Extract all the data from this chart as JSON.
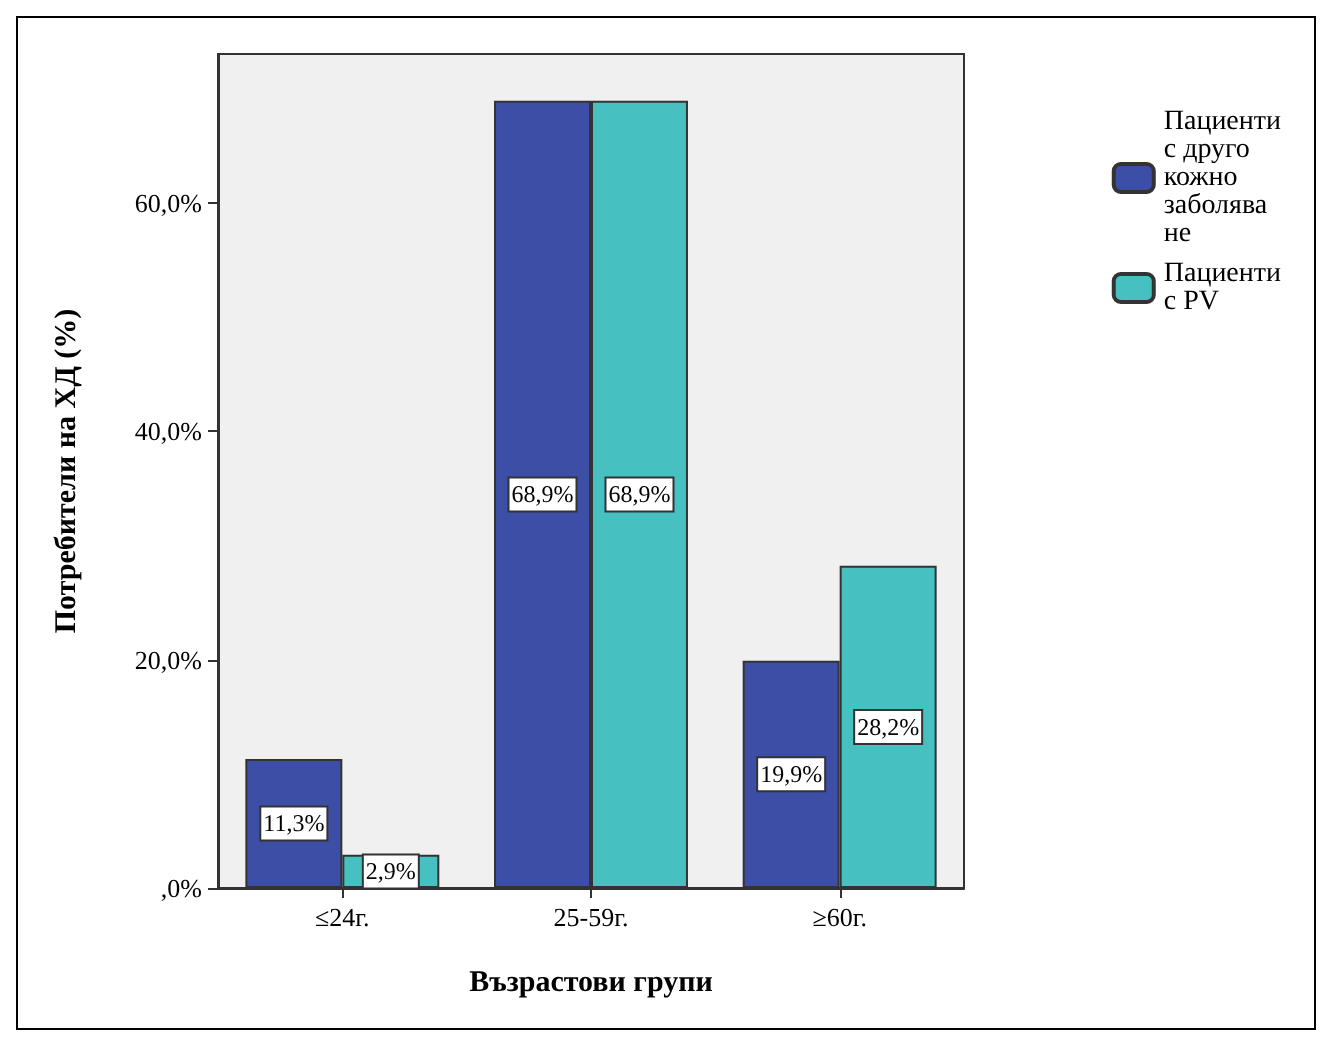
{
  "chart_data": {
    "type": "bar",
    "xlabel": "Възрастови групи",
    "ylabel": "Потребители на ХД (%)",
    "categories": [
      "≤24г.",
      "25-59г.",
      "≥60г."
    ],
    "series": [
      {
        "name": "Пациенти с друго кожно заболяване",
        "color": "#3c4ea6",
        "values": [
          11.3,
          68.9,
          19.9
        ],
        "value_labels": [
          "11,3%",
          "68,9%",
          "19,9%"
        ]
      },
      {
        "name": "Пациенти с PV",
        "color": "#47c0c2",
        "values": [
          2.9,
          68.9,
          28.2
        ],
        "value_labels": [
          "2,9%",
          "68,9%",
          "28,2%"
        ]
      }
    ],
    "ylim": [
      0,
      73
    ],
    "yticks": [
      {
        "value": 0,
        "label": ",0%"
      },
      {
        "value": 20,
        "label": "20,0%"
      },
      {
        "value": 40,
        "label": "40,0%"
      },
      {
        "value": 60,
        "label": "60,0%"
      }
    ],
    "grid": false,
    "legend": "top right"
  }
}
